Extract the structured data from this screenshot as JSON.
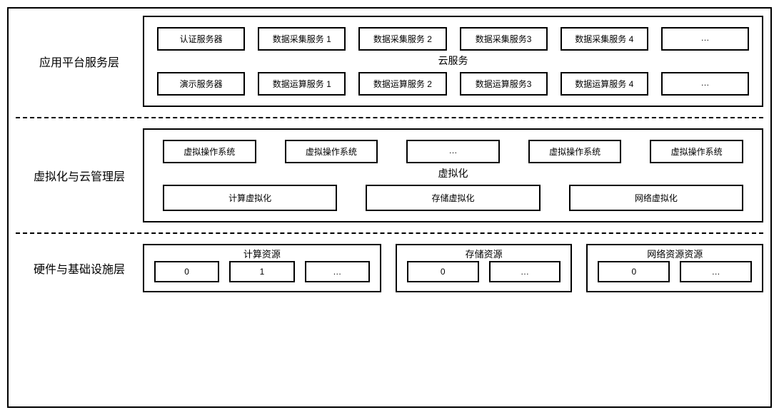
{
  "colors": {
    "background": "#ffffff",
    "border": "#000000",
    "text": "#000000"
  },
  "fonts": {
    "labelSize": 16,
    "boxSize": 12,
    "midSize": 14
  },
  "layers": {
    "app": {
      "label": "应用平台服务层",
      "midLabel": "云服务",
      "row1": [
        "认证服务器",
        "数据采集服务 1",
        "数据采集服务 2",
        "数据采集服务3",
        "数据采集服务 4",
        "…"
      ],
      "row2": [
        "演示服务器",
        "数据运算服务 1",
        "数据运算服务 2",
        "数据运算服务3",
        "数据运算服务 4",
        "…"
      ]
    },
    "virt": {
      "label": "虚拟化与云管理层",
      "midLabel": "虚拟化",
      "row1": [
        "虚拟操作系统",
        "虚拟操作系统",
        "…",
        "虚拟操作系统",
        "虚拟操作系统"
      ],
      "row2": [
        "计算虚拟化",
        "存储虚拟化",
        "网络虚拟化"
      ]
    },
    "hw": {
      "label": "硬件与基础设施层",
      "groups": [
        {
          "title": "计算资源",
          "items": [
            "0",
            "1",
            "…"
          ]
        },
        {
          "title": "存储资源",
          "items": [
            "0",
            "…"
          ]
        },
        {
          "title": "网络资源资源",
          "items": [
            "0",
            "…"
          ]
        }
      ]
    }
  }
}
